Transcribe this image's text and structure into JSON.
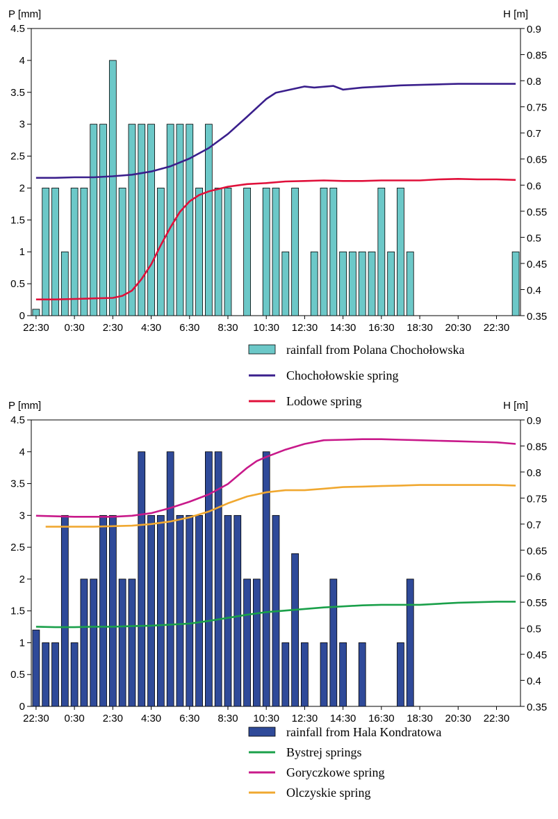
{
  "chart_data": [
    {
      "type": "bar",
      "left_unit": "P [mm]",
      "right_unit": "H [m]",
      "left_ylim": [
        0,
        4.5
      ],
      "left_ticks": [
        "0",
        "0.5",
        "1",
        "1.5",
        "2",
        "2.5",
        "3",
        "3.5",
        "4",
        "4.5"
      ],
      "right_ylim": [
        0.35,
        0.9
      ],
      "right_ticks": [
        "0.35",
        "0.4",
        "0.45",
        "0.5",
        "0.55",
        "0.6",
        "0.65",
        "0.7",
        "0.75",
        "0.8",
        "0.85",
        "0.9"
      ],
      "x_ticks": [
        "22:30",
        "0:30",
        "2:30",
        "4:30",
        "6:30",
        "8:30",
        "10:30",
        "12:30",
        "14:30",
        "16:30",
        "18:30",
        "20:30",
        "22:30"
      ],
      "bar_series": {
        "name": "rainfall from Polana Chochołowska",
        "color": "#6cc8c8",
        "values": [
          0.1,
          2,
          2,
          1,
          2,
          2,
          3,
          3,
          4,
          2,
          3,
          3,
          3,
          2,
          3,
          3,
          3,
          2,
          3,
          2,
          2,
          0,
          2,
          0,
          2,
          2,
          1,
          2,
          0,
          1,
          2,
          2,
          1,
          1,
          1,
          1,
          2,
          1,
          2,
          1,
          0,
          0,
          0,
          0,
          0,
          0,
          0,
          0,
          0,
          0,
          1
        ]
      },
      "line_series": [
        {
          "name": "Chochołowskie spring",
          "color": "#3a1f8c",
          "x": [
            0,
            2,
            4,
            6,
            8,
            10,
            12,
            14,
            16,
            18,
            20,
            22,
            24,
            25,
            26,
            28,
            29,
            31,
            32,
            34,
            36,
            38,
            40,
            42,
            44,
            46,
            48,
            50
          ],
          "y": [
            0.614,
            0.614,
            0.615,
            0.615,
            0.617,
            0.62,
            0.626,
            0.636,
            0.651,
            0.671,
            0.698,
            0.731,
            0.765,
            0.777,
            0.781,
            0.789,
            0.787,
            0.79,
            0.783,
            0.787,
            0.789,
            0.791,
            0.792,
            0.793,
            0.794,
            0.794,
            0.794,
            0.794
          ]
        },
        {
          "name": "Lodowe spring",
          "color": "#e0103a",
          "x": [
            0,
            2,
            4,
            6,
            8,
            9,
            10,
            11,
            12,
            13,
            14,
            15,
            16,
            17,
            18,
            20,
            22,
            24,
            26,
            28,
            30,
            32,
            34,
            36,
            38,
            40,
            42,
            44,
            46,
            48,
            50
          ],
          "y": [
            0.381,
            0.381,
            0.382,
            0.383,
            0.384,
            0.388,
            0.398,
            0.42,
            0.448,
            0.485,
            0.519,
            0.549,
            0.569,
            0.581,
            0.588,
            0.597,
            0.602,
            0.604,
            0.607,
            0.608,
            0.609,
            0.608,
            0.608,
            0.609,
            0.609,
            0.609,
            0.611,
            0.612,
            0.611,
            0.611,
            0.61
          ]
        }
      ]
    },
    {
      "type": "bar",
      "left_unit": "P [mm]",
      "right_unit": "H [m]",
      "left_ylim": [
        0,
        4.5
      ],
      "left_ticks": [
        "0",
        "0.5",
        "1",
        "1.5",
        "2",
        "2.5",
        "3",
        "3.5",
        "4",
        "4.5"
      ],
      "right_ylim": [
        0.35,
        0.9
      ],
      "right_ticks": [
        "0.35",
        "0.4",
        "0.45",
        "0.5",
        "0.55",
        "0.6",
        "0.65",
        "0.7",
        "0.75",
        "0.8",
        "0.85",
        "0.9"
      ],
      "x_ticks": [
        "22:30",
        "0:30",
        "2:30",
        "4:30",
        "6:30",
        "8:30",
        "10:30",
        "12:30",
        "14:30",
        "16:30",
        "18:30",
        "20:30",
        "22:30"
      ],
      "bar_series": {
        "name": "rainfall from Hala Kondratowa",
        "color": "#2f4a99",
        "values": [
          1.2,
          1,
          1,
          3,
          1,
          2,
          2,
          3,
          3,
          2,
          2,
          4,
          3,
          3,
          4,
          3,
          3,
          3,
          4,
          4,
          3,
          3,
          2,
          2,
          4,
          3,
          1,
          2.4,
          1,
          0,
          1,
          2,
          1,
          0,
          1,
          0,
          0,
          0,
          1,
          2
        ]
      },
      "line_series": [
        {
          "name": "Bystrej springs",
          "color": "#1aa04a",
          "x": [
            0,
            2,
            4,
            6,
            8,
            10,
            12,
            14,
            16,
            18,
            20,
            22,
            24,
            26,
            28,
            30,
            32,
            34,
            36,
            38,
            40,
            42,
            44,
            46,
            48,
            50
          ],
          "y": [
            0.503,
            0.502,
            0.502,
            0.503,
            0.503,
            0.504,
            0.505,
            0.507,
            0.509,
            0.514,
            0.52,
            0.526,
            0.531,
            0.534,
            0.537,
            0.54,
            0.542,
            0.544,
            0.545,
            0.545,
            0.545,
            0.547,
            0.549,
            0.55,
            0.551,
            0.551
          ]
        },
        {
          "name": "Goryczkowe spring",
          "color": "#c8198a",
          "x": [
            0,
            2,
            4,
            6,
            8,
            10,
            12,
            14,
            16,
            18,
            20,
            22,
            23,
            24,
            26,
            28,
            30,
            32,
            34,
            36,
            38,
            40,
            42,
            44,
            46,
            48,
            50
          ],
          "y": [
            0.716,
            0.715,
            0.714,
            0.714,
            0.714,
            0.716,
            0.721,
            0.731,
            0.743,
            0.757,
            0.777,
            0.808,
            0.821,
            0.829,
            0.843,
            0.854,
            0.861,
            0.862,
            0.863,
            0.863,
            0.862,
            0.861,
            0.86,
            0.859,
            0.858,
            0.857,
            0.854
          ]
        },
        {
          "name": "Olczyskie spring",
          "color": "#f0a830",
          "x": [
            1,
            2,
            4,
            6,
            8,
            10,
            12,
            14,
            16,
            18,
            20,
            22,
            24,
            26,
            28,
            30,
            32,
            34,
            36,
            38,
            40,
            42,
            44,
            46,
            48,
            50
          ],
          "y": [
            0.695,
            0.695,
            0.695,
            0.695,
            0.696,
            0.697,
            0.7,
            0.705,
            0.713,
            0.724,
            0.74,
            0.753,
            0.761,
            0.765,
            0.765,
            0.768,
            0.771,
            0.772,
            0.773,
            0.774,
            0.775,
            0.775,
            0.775,
            0.775,
            0.775,
            0.774
          ]
        }
      ]
    }
  ]
}
